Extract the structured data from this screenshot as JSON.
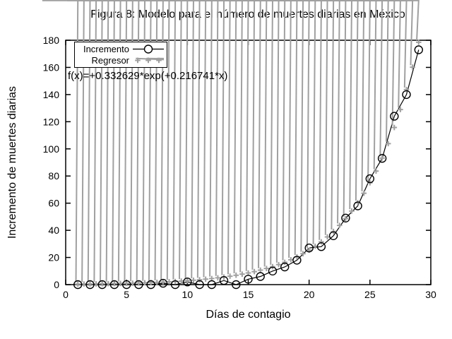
{
  "title": "Figura 8: Modelo para el número de muertes diarias en México",
  "axis": {
    "xlabel": "Días de contagio",
    "ylabel": "Incremento de muertes diarias"
  },
  "legend": {
    "items": [
      {
        "label": "Incremento"
      },
      {
        "label": "Regresor"
      }
    ]
  },
  "function_label": "f(x)=+0.332629*exp(+0.216741*x)",
  "colors": {
    "foreground": "#000000",
    "background": "#ffffff",
    "regressor_gray": "#a0a0a0"
  },
  "chart_data": {
    "type": "line",
    "title": "Figura 8: Modelo para el número de muertes diarias en México",
    "xlabel": "Días de contagio",
    "ylabel": "Incremento de muertes diarias",
    "xlim": [
      0,
      30
    ],
    "ylim": [
      0,
      180
    ],
    "x_ticks": [
      0,
      5,
      10,
      15,
      20,
      25,
      30
    ],
    "y_ticks": [
      0,
      20,
      40,
      60,
      80,
      100,
      120,
      140,
      160,
      180
    ],
    "grid": false,
    "legend_position": "top-left",
    "annotation": "f(x)=+0.332629*exp(+0.216741*x)",
    "series": [
      {
        "name": "Incremento",
        "type": "line+marker",
        "marker": "open-circle",
        "color": "#000000",
        "x": [
          1,
          2,
          3,
          4,
          5,
          6,
          7,
          8,
          9,
          10,
          11,
          12,
          13,
          14,
          15,
          16,
          17,
          18,
          19,
          20,
          21,
          22,
          23,
          24,
          25,
          26,
          27,
          28,
          29
        ],
        "y": [
          0,
          0,
          0,
          0,
          0,
          0,
          0,
          1,
          0,
          2,
          0,
          0,
          3,
          0,
          4,
          6,
          10,
          13,
          18,
          27,
          28,
          36,
          49,
          58,
          78,
          93,
          124,
          140,
          173
        ]
      },
      {
        "name": "Regresor",
        "type": "scatter",
        "marker": "asterisk",
        "color": "#a0a0a0",
        "model": "f(x)=a*exp(b*x)",
        "a": 0.332629,
        "b": 0.216741,
        "x_start": 1,
        "x_end": 29,
        "x_step": 0.5
      }
    ]
  }
}
